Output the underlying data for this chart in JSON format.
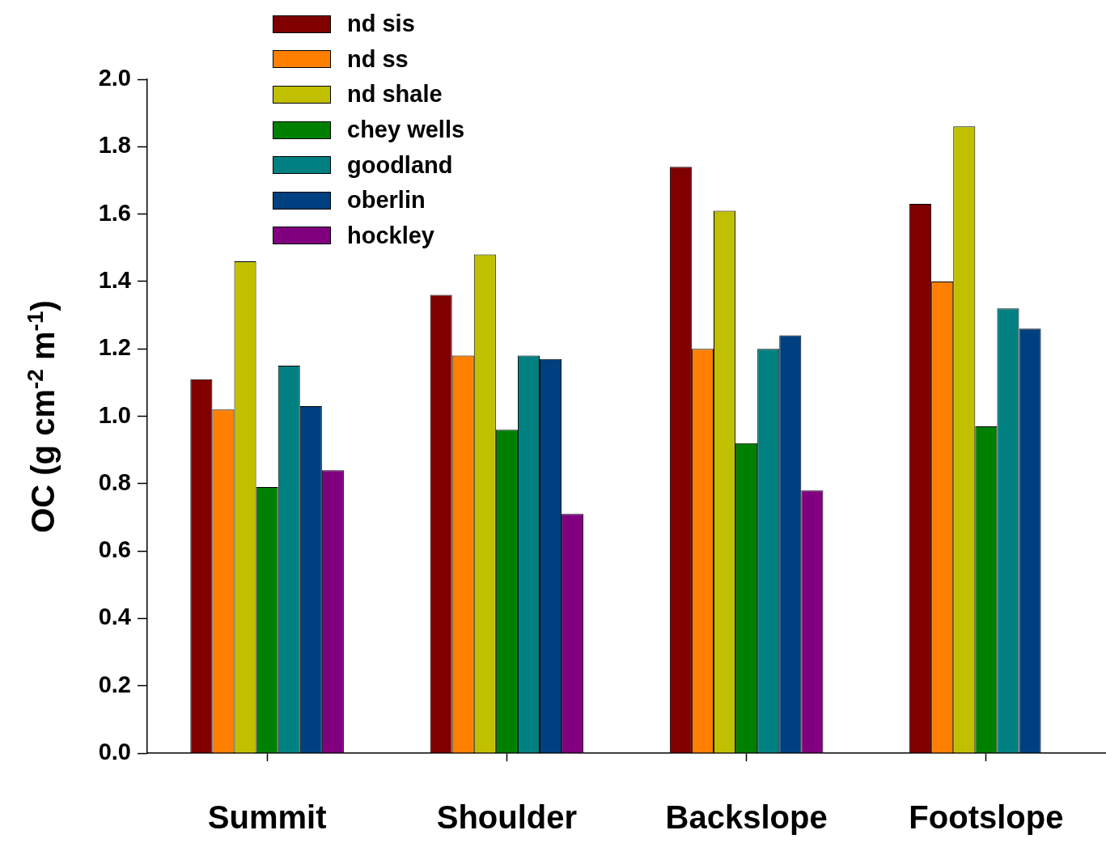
{
  "chart_data": {
    "type": "bar",
    "ylabel": "OC (g cm$^{-2}$ m$^{-1}$)",
    "categories": [
      "Summit",
      "Shoulder",
      "Backslope",
      "Footslope"
    ],
    "series": [
      {
        "name": "nd sis",
        "color": "#800000",
        "values": [
          1.11,
          1.36,
          1.74,
          1.63
        ]
      },
      {
        "name": "nd ss",
        "color": "#ff8000",
        "values": [
          1.02,
          1.18,
          1.2,
          1.4
        ]
      },
      {
        "name": "nd shale",
        "color": "#c0c000",
        "values": [
          1.46,
          1.48,
          1.61,
          1.86
        ]
      },
      {
        "name": "chey wells",
        "color": "#008000",
        "values": [
          0.79,
          0.96,
          0.92,
          0.97
        ]
      },
      {
        "name": "goodland",
        "color": "#008080",
        "values": [
          1.15,
          1.18,
          1.2,
          1.32
        ]
      },
      {
        "name": "oberlin",
        "color": "#004080",
        "values": [
          1.03,
          1.17,
          1.24,
          1.26
        ]
      },
      {
        "name": "hockley",
        "color": "#800080",
        "values": [
          0.84,
          0.71,
          0.78,
          null
        ]
      }
    ],
    "ylim": [
      0,
      2
    ],
    "yticks": [
      {
        "value": 0,
        "label": "0.0"
      },
      {
        "value": 0.2,
        "label": "0.2"
      },
      {
        "value": 0.4,
        "label": "0.4"
      },
      {
        "value": 0.6,
        "label": "0.6"
      },
      {
        "value": 0.8,
        "label": "0.8"
      },
      {
        "value": 1,
        "label": "1.0"
      },
      {
        "value": 1.2,
        "label": "1.2"
      },
      {
        "value": 1.4,
        "label": "1.4"
      },
      {
        "value": 1.6,
        "label": "1.6"
      },
      {
        "value": 1.8,
        "label": "1.8"
      },
      {
        "value": 2,
        "label": "2.0"
      }
    ],
    "grid": false,
    "legend": "top left"
  }
}
